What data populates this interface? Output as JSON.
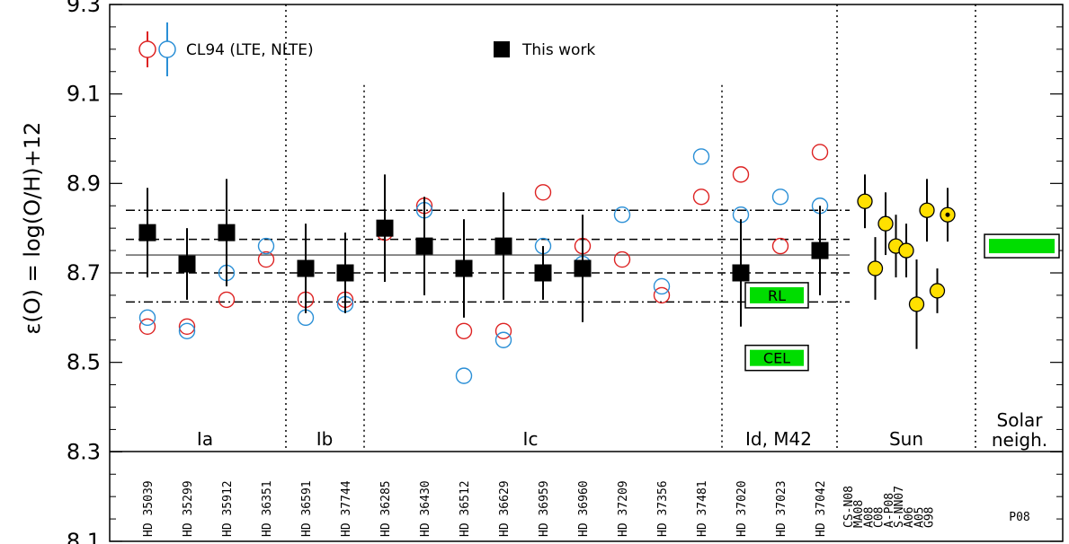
{
  "chart_data": {
    "type": "scatter",
    "ylabel": "ε(O) = log(O/H)+12",
    "ylim": [
      8.1,
      9.3
    ],
    "yticks": [
      "8.1",
      "8.3",
      "8.5",
      "8.7",
      "8.9",
      "9.1",
      "9.3"
    ],
    "legend": {
      "cl94_label": "CL94 (LTE, NLTE)",
      "this_work_label": "This work"
    },
    "colors": {
      "lte": "#dd2222",
      "nlte": "#2a8fd6",
      "this_work": "#000000",
      "sun": "#ffe000",
      "box_fill": "#00dd00"
    },
    "stars": [
      "HD 35039",
      "HD 35299",
      "HD 35912",
      "HD 36351",
      "HD 36591",
      "HD 37744",
      "HD 36285",
      "HD 36430",
      "HD 36512",
      "HD 36629",
      "HD 36959",
      "HD 36960",
      "HD 37209",
      "HD 37356",
      "HD 37481",
      "HD 37020",
      "HD 37023",
      "HD 37042"
    ],
    "groups": [
      {
        "label": "Ia",
        "start": 0,
        "end": 3
      },
      {
        "label": "Ib",
        "start": 4,
        "end": 5
      },
      {
        "label": "Ic",
        "start": 6,
        "end": 14
      },
      {
        "label": "Id, M42",
        "start": 15,
        "end": 17
      },
      {
        "label": "Sun",
        "start": 18,
        "end": 20
      },
      {
        "label": "Solar neigh.",
        "start": 21,
        "end": 22
      }
    ],
    "this_work": [
      {
        "star": 0,
        "y": 8.79,
        "err": 0.1
      },
      {
        "star": 1,
        "y": 8.72,
        "err": 0.08
      },
      {
        "star": 2,
        "y": 8.79,
        "err": 0.12
      },
      {
        "star": 4,
        "y": 8.71,
        "err": 0.1
      },
      {
        "star": 5,
        "y": 8.7,
        "err": 0.09
      },
      {
        "star": 6,
        "y": 8.8,
        "err": 0.12
      },
      {
        "star": 7,
        "y": 8.76,
        "err": 0.11
      },
      {
        "star": 8,
        "y": 8.71,
        "err": 0.11
      },
      {
        "star": 9,
        "y": 8.76,
        "err": 0.12
      },
      {
        "star": 10,
        "y": 8.7,
        "err": 0.06
      },
      {
        "star": 11,
        "y": 8.71,
        "err": 0.12
      },
      {
        "star": 15,
        "y": 8.7,
        "err": 0.12
      },
      {
        "star": 17,
        "y": 8.75,
        "err": 0.1
      }
    ],
    "cl94_lte": [
      {
        "star": 0,
        "y": 8.58
      },
      {
        "star": 1,
        "y": 8.58
      },
      {
        "star": 2,
        "y": 8.64
      },
      {
        "star": 3,
        "y": 8.73
      },
      {
        "star": 4,
        "y": 8.64
      },
      {
        "star": 5,
        "y": 8.64
      },
      {
        "star": 6,
        "y": 8.79
      },
      {
        "star": 7,
        "y": 8.85
      },
      {
        "star": 8,
        "y": 8.57
      },
      {
        "star": 9,
        "y": 8.57
      },
      {
        "star": 10,
        "y": 8.88
      },
      {
        "star": 11,
        "y": 8.76
      },
      {
        "star": 12,
        "y": 8.73
      },
      {
        "star": 13,
        "y": 8.65
      },
      {
        "star": 14,
        "y": 8.87
      },
      {
        "star": 15,
        "y": 8.92
      },
      {
        "star": 16,
        "y": 8.76
      },
      {
        "star": 17,
        "y": 8.97
      }
    ],
    "cl94_nlte": [
      {
        "star": 0,
        "y": 8.6
      },
      {
        "star": 1,
        "y": 8.57
      },
      {
        "star": 2,
        "y": 8.7
      },
      {
        "star": 3,
        "y": 8.76
      },
      {
        "star": 4,
        "y": 8.6
      },
      {
        "star": 5,
        "y": 8.63
      },
      {
        "star": 7,
        "y": 8.84
      },
      {
        "star": 8,
        "y": 8.47
      },
      {
        "star": 9,
        "y": 8.55
      },
      {
        "star": 10,
        "y": 8.76
      },
      {
        "star": 11,
        "y": 8.72
      },
      {
        "star": 12,
        "y": 8.83
      },
      {
        "star": 13,
        "y": 8.67
      },
      {
        "star": 14,
        "y": 8.96
      },
      {
        "star": 15,
        "y": 8.83
      },
      {
        "star": 16,
        "y": 8.87
      },
      {
        "star": 17,
        "y": 8.85
      }
    ],
    "m42_boxes": [
      {
        "label": "RL",
        "y": 8.65
      },
      {
        "label": "CEL",
        "y": 8.51
      }
    ],
    "sun": [
      {
        "label": "CS-N08",
        "y": 8.86,
        "err": 0.06
      },
      {
        "label": "MA08",
        "y": 8.71,
        "err": 0.07
      },
      {
        "label": "A08",
        "y": 8.81,
        "err": 0.07
      },
      {
        "label": "C08",
        "y": 8.76,
        "err": 0.07
      },
      {
        "label": "A-P08",
        "y": 8.75,
        "err": 0.06
      },
      {
        "label": "S-NN07",
        "y": 8.63,
        "err": 0.1
      },
      {
        "label": "A06",
        "y": 8.84,
        "err": 0.07
      },
      {
        "label": "A05",
        "y": 8.66,
        "err": 0.05
      },
      {
        "label": "G98",
        "y": 8.83,
        "err": 0.06
      }
    ],
    "solar_neighbourhood": {
      "label": "P08",
      "y": 8.76
    },
    "mean": 8.74,
    "sigma1": [
      8.7,
      8.775
    ],
    "sigma2": [
      8.635,
      8.84
    ]
  }
}
